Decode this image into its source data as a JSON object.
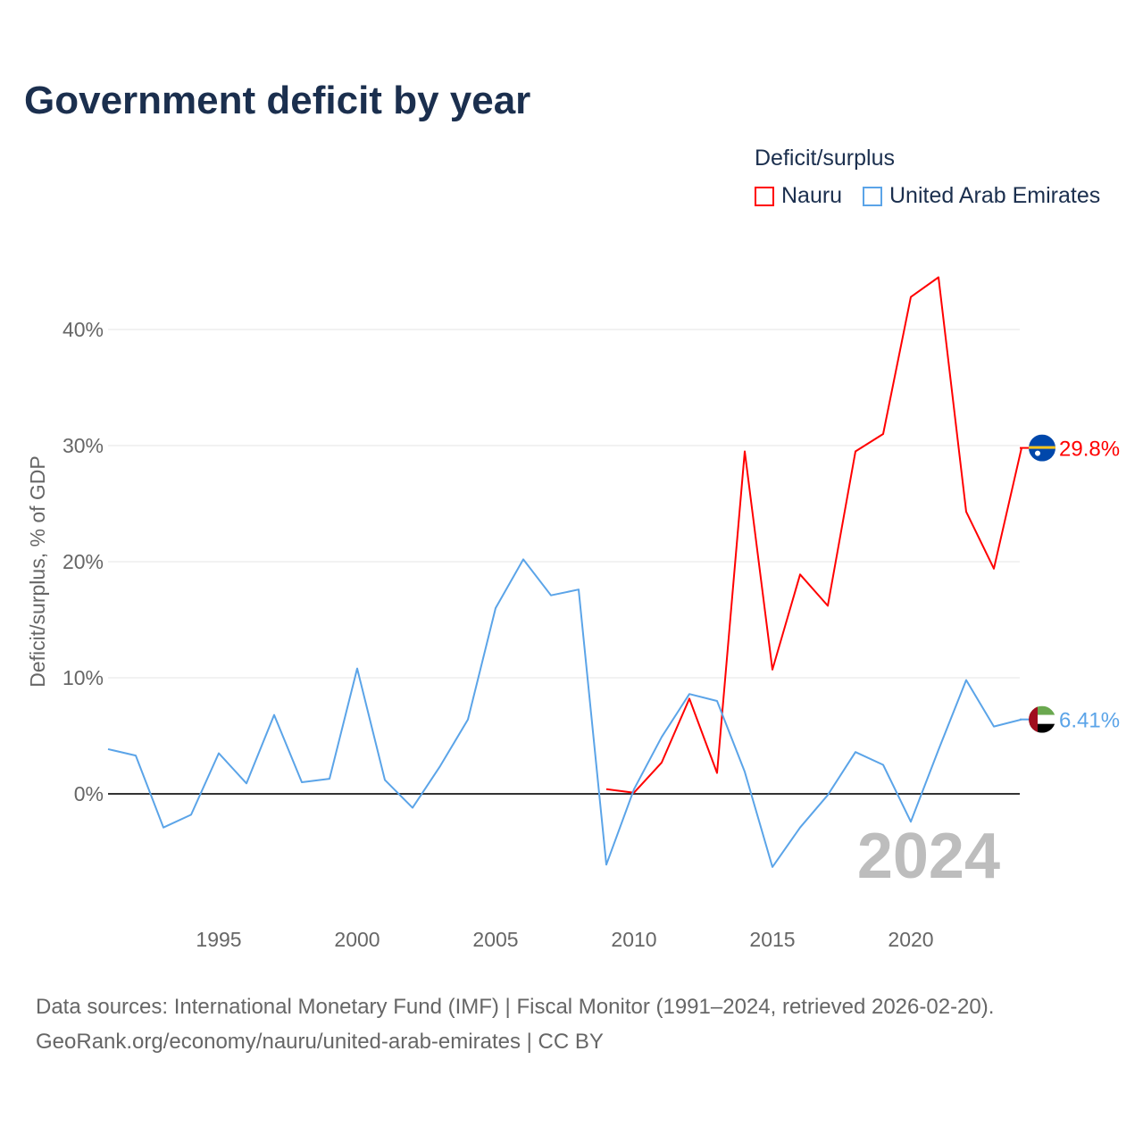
{
  "chart_data": {
    "type": "line",
    "title": "Government deficit by year",
    "ylabel": "Deficit/surplus, % of GDP",
    "xlabel": "",
    "legend_title": "Deficit/surplus",
    "legend_placement": "top-right",
    "ylim": [
      -9,
      47
    ],
    "xlim": [
      1991,
      2024
    ],
    "y_ticks": [
      0,
      10,
      20,
      30,
      40
    ],
    "y_tick_labels": [
      "0%",
      "10%",
      "20%",
      "30%",
      "40%"
    ],
    "x_ticks": [
      1995,
      2000,
      2005,
      2010,
      2015,
      2020
    ],
    "x_tick_labels": [
      "1995",
      "2000",
      "2005",
      "2010",
      "2015",
      "2020"
    ],
    "grid": true,
    "year_watermark": "2024",
    "series": [
      {
        "name": "Nauru",
        "color": "#ff0000",
        "end_label": "29.8%",
        "flag": "nauru",
        "x": [
          2009,
          2010,
          2011,
          2012,
          2013,
          2014,
          2015,
          2016,
          2017,
          2018,
          2019,
          2020,
          2021,
          2022,
          2023,
          2024
        ],
        "values": [
          0.4,
          0.1,
          2.7,
          8.2,
          1.8,
          29.5,
          10.7,
          18.9,
          16.2,
          29.5,
          31.0,
          42.8,
          44.5,
          24.3,
          19.4,
          29.8
        ]
      },
      {
        "name": "United Arab Emirates",
        "color": "#5ba4e8",
        "end_label": "6.41%",
        "flag": "uae",
        "x": [
          1991,
          1992,
          1993,
          1994,
          1995,
          1996,
          1997,
          1998,
          1999,
          2000,
          2001,
          2002,
          2003,
          2004,
          2005,
          2006,
          2007,
          2008,
          2009,
          2010,
          2011,
          2012,
          2013,
          2014,
          2015,
          2016,
          2017,
          2018,
          2019,
          2020,
          2021,
          2022,
          2023,
          2024
        ],
        "values": [
          3.85,
          3.3,
          -2.9,
          -1.8,
          3.5,
          0.9,
          6.8,
          1.0,
          1.3,
          10.8,
          1.2,
          -1.2,
          2.4,
          6.4,
          16.0,
          20.2,
          17.1,
          17.6,
          -6.1,
          0.4,
          4.9,
          8.6,
          8.0,
          1.9,
          -6.3,
          -2.9,
          -0.1,
          3.6,
          2.5,
          -2.4,
          3.8,
          9.8,
          5.8,
          6.41
        ]
      }
    ]
  },
  "footer": {
    "line1": "Data sources: International Monetary Fund (IMF) | Fiscal Monitor (1991–2024, retrieved 2026-02-20).",
    "line2": "GeoRank.org/economy/nauru/united-arab-emirates | CC BY"
  }
}
